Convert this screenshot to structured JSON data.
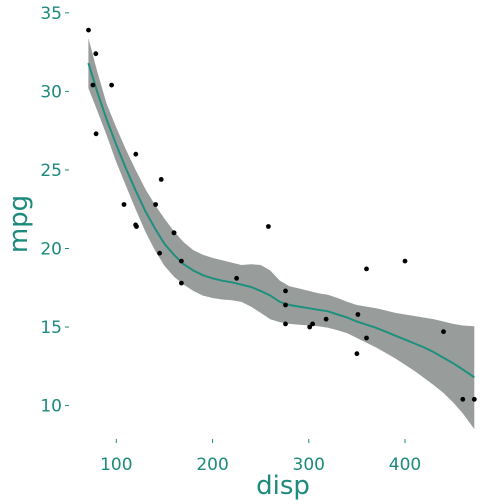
{
  "chart_data": {
    "type": "scatter",
    "xlabel": "disp",
    "ylabel": "mpg",
    "xlim": [
      55,
      480
    ],
    "ylim": [
      8,
      35.5
    ],
    "x_ticks": [
      100,
      200,
      300,
      400
    ],
    "y_ticks": [
      10,
      15,
      20,
      25,
      30,
      35
    ],
    "x_tick_labels": [
      "100",
      "200",
      "300",
      "400"
    ],
    "y_tick_labels": [
      "10",
      "15",
      "20",
      "25",
      "30",
      "35"
    ],
    "grid": false,
    "colors": {
      "axis_text": "#1c8a7c",
      "smooth_line": "#1f8f7e",
      "ribbon": "#8f9593",
      "points": "#000000"
    },
    "points": [
      {
        "x": 71.1,
        "y": 33.9
      },
      {
        "x": 75.7,
        "y": 30.4
      },
      {
        "x": 78.7,
        "y": 32.4
      },
      {
        "x": 79.0,
        "y": 27.3
      },
      {
        "x": 95.1,
        "y": 30.4
      },
      {
        "x": 108.0,
        "y": 22.8
      },
      {
        "x": 120.1,
        "y": 21.5
      },
      {
        "x": 120.3,
        "y": 26.0
      },
      {
        "x": 121.0,
        "y": 21.4
      },
      {
        "x": 140.8,
        "y": 22.8
      },
      {
        "x": 145.0,
        "y": 19.7
      },
      {
        "x": 146.7,
        "y": 24.4
      },
      {
        "x": 160.0,
        "y": 21.0
      },
      {
        "x": 160.0,
        "y": 21.0
      },
      {
        "x": 167.6,
        "y": 19.2
      },
      {
        "x": 167.6,
        "y": 17.8
      },
      {
        "x": 225.0,
        "y": 18.1
      },
      {
        "x": 258.0,
        "y": 21.4
      },
      {
        "x": 275.8,
        "y": 16.4
      },
      {
        "x": 275.8,
        "y": 17.3
      },
      {
        "x": 275.8,
        "y": 15.2
      },
      {
        "x": 301.0,
        "y": 15.0
      },
      {
        "x": 304.0,
        "y": 15.2
      },
      {
        "x": 318.0,
        "y": 15.5
      },
      {
        "x": 350.0,
        "y": 13.3
      },
      {
        "x": 351.0,
        "y": 15.8
      },
      {
        "x": 360.0,
        "y": 18.7
      },
      {
        "x": 360.0,
        "y": 14.3
      },
      {
        "x": 400.0,
        "y": 19.2
      },
      {
        "x": 440.0,
        "y": 14.7
      },
      {
        "x": 460.0,
        "y": 10.4
      },
      {
        "x": 472.0,
        "y": 10.4
      }
    ],
    "smooth": {
      "x": [
        71,
        80,
        90,
        100,
        110,
        120,
        130,
        140,
        150,
        160,
        170,
        180,
        190,
        200,
        210,
        220,
        230,
        240,
        250,
        260,
        270,
        280,
        290,
        300,
        310,
        320,
        330,
        340,
        350,
        360,
        370,
        380,
        390,
        400,
        410,
        420,
        430,
        440,
        450,
        460,
        472
      ],
      "y": [
        31.8,
        30.0,
        28.2,
        26.6,
        25.1,
        23.7,
        22.4,
        21.3,
        20.3,
        19.6,
        19.0,
        18.6,
        18.3,
        18.1,
        17.95,
        17.85,
        17.7,
        17.55,
        17.3,
        17.0,
        16.6,
        16.4,
        16.3,
        16.2,
        16.1,
        16.0,
        15.8,
        15.6,
        15.35,
        15.15,
        14.95,
        14.7,
        14.45,
        14.2,
        13.95,
        13.7,
        13.4,
        13.05,
        12.7,
        12.3,
        11.8
      ],
      "lower": [
        30.2,
        28.8,
        27.2,
        25.5,
        24.0,
        22.5,
        21.1,
        19.9,
        18.9,
        18.2,
        17.7,
        17.3,
        17.0,
        16.85,
        16.75,
        16.7,
        16.6,
        16.3,
        15.9,
        15.5,
        15.3,
        15.2,
        15.15,
        15.1,
        15.05,
        14.95,
        14.8,
        14.6,
        14.3,
        14.0,
        13.7,
        13.35,
        13.0,
        12.6,
        12.2,
        11.75,
        11.3,
        10.8,
        10.2,
        9.5,
        8.5
      ],
      "upper": [
        33.4,
        31.3,
        29.2,
        27.7,
        26.3,
        25.0,
        23.8,
        22.8,
        21.9,
        21.1,
        20.4,
        19.9,
        19.6,
        19.4,
        19.25,
        19.1,
        18.95,
        19.0,
        18.95,
        18.6,
        17.95,
        17.6,
        17.45,
        17.3,
        17.15,
        17.05,
        16.85,
        16.6,
        16.4,
        16.3,
        16.2,
        16.05,
        15.9,
        15.8,
        15.7,
        15.6,
        15.5,
        15.35,
        15.2,
        15.1,
        15.05
      ]
    }
  }
}
